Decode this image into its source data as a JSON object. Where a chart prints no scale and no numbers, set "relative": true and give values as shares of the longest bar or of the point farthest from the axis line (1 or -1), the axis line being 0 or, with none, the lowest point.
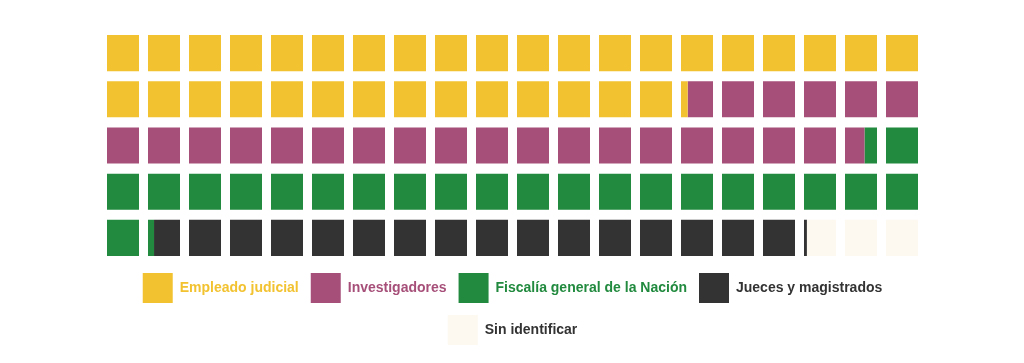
{
  "chart_data": {
    "type": "bar",
    "orientation": "horizontal",
    "stacked": true,
    "relative": true,
    "legend": "bottom",
    "categories": [
      null,
      null,
      null,
      null,
      null
    ],
    "series": [
      {
        "name": "Empleado judicial",
        "color": "#f2c230",
        "values": [
          1,
          0.716,
          null,
          null,
          null
        ]
      },
      {
        "name": "Investigadores",
        "color": "#a64f78",
        "values": [
          null,
          0.284,
          0.934,
          null,
          null
        ]
      },
      {
        "name": "Fiscalía general de la Nación",
        "color": "#218a3e",
        "values": [
          null,
          null,
          0.066,
          1,
          0.058
        ]
      },
      {
        "name": "Jueces y magistrados",
        "color": "#333333",
        "values": [
          null,
          null,
          null,
          null,
          0.805
        ]
      },
      {
        "name": "Sin identificar",
        "color": "#fdf8f0",
        "values": [
          null,
          null,
          null,
          null,
          0.137
        ]
      }
    ]
  }
}
